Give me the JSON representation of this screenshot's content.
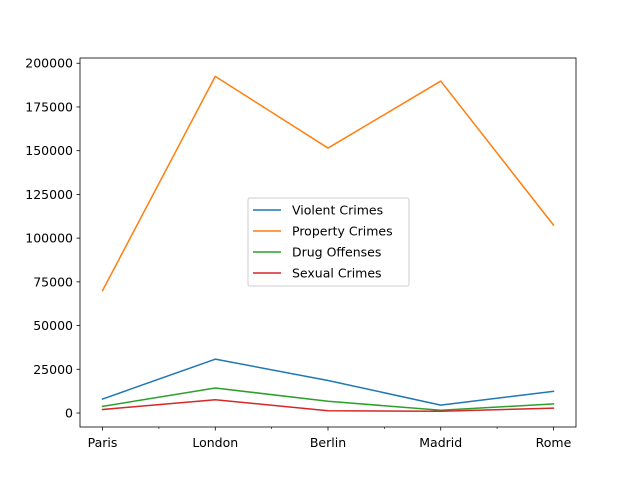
{
  "chart_data": {
    "type": "line",
    "title": "",
    "xlabel": "",
    "ylabel": "",
    "categories": [
      "Paris",
      "London",
      "Berlin",
      "Madrid",
      "Rome"
    ],
    "ylim": [
      -8000,
      203000
    ],
    "yticks": [
      0,
      25000,
      50000,
      75000,
      100000,
      125000,
      150000,
      175000,
      200000
    ],
    "series": [
      {
        "name": "Violent Crimes",
        "color": "#1f77b4",
        "values": [
          8000,
          30800,
          18600,
          4500,
          12400
        ]
      },
      {
        "name": "Property Crimes",
        "color": "#ff7f0e",
        "values": [
          70000,
          192500,
          151500,
          189800,
          107500
        ]
      },
      {
        "name": "Drug Offenses",
        "color": "#2ca02c",
        "values": [
          3800,
          14300,
          6700,
          1600,
          5200
        ]
      },
      {
        "name": "Sexual Crimes",
        "color": "#d62728",
        "values": [
          2000,
          7600,
          1300,
          1000,
          2800
        ]
      }
    ],
    "legend": "center",
    "grid": false
  }
}
